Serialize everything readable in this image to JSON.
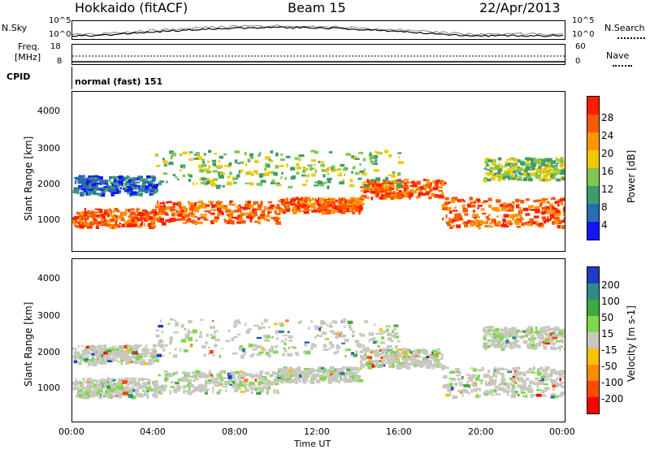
{
  "header": {
    "station": "Hokkaido (fitACF)",
    "beam": "Beam 15",
    "date": "22/Apr/2013"
  },
  "noise_panel": {
    "left_label": "N.Sky",
    "left_top_tick": "10^5",
    "left_bottom_tick": "10^0",
    "right_label": "N.Search",
    "right_top_tick": "10^5",
    "right_bottom_tick": "10^0"
  },
  "freq_panel": {
    "left_label_1": "Freq.",
    "left_label_2": "[MHz]",
    "left_top_tick": "18",
    "left_bottom_tick": "8",
    "right_label": "Nave",
    "right_top_tick": "60",
    "right_bottom_tick": "0"
  },
  "cpid_panel": {
    "label": "CPID",
    "mode": "normal (fast) 151"
  },
  "x_axis": {
    "label": "Time UT",
    "ticks": [
      "00:00",
      "04:00",
      "08:00",
      "12:00",
      "16:00",
      "20:00",
      "00:00"
    ]
  },
  "chart_data": [
    {
      "type": "heatmap",
      "name": "power",
      "ylabel": "Slant Range [km]",
      "y_ticks": [
        "1000",
        "2000",
        "3000",
        "4000"
      ],
      "ylim": [
        200,
        4600
      ],
      "xlim_hours": [
        0,
        24
      ],
      "colorbar": {
        "label": "Power [dB]",
        "ticks": [
          "28",
          "24",
          "20",
          "16",
          "12",
          "8",
          "4"
        ],
        "colors": [
          "#ff1e00",
          "#ff5a00",
          "#ff9600",
          "#f0c800",
          "#7fc850",
          "#3c9e6a",
          "#2a6cb0",
          "#1414ff"
        ]
      },
      "bands": [
        {
          "hours": [
            0,
            4
          ],
          "range": [
            900,
            1400
          ],
          "level": "high"
        },
        {
          "hours": [
            4,
            10
          ],
          "range": [
            1000,
            1600
          ],
          "level": "high"
        },
        {
          "hours": [
            10,
            14
          ],
          "range": [
            1300,
            1700
          ],
          "level": "high"
        },
        {
          "hours": [
            14,
            18
          ],
          "range": [
            1700,
            2200
          ],
          "level": "high"
        },
        {
          "hours": [
            18,
            24
          ],
          "range": [
            900,
            1700
          ],
          "level": "high"
        },
        {
          "hours": [
            0,
            4
          ],
          "range": [
            1800,
            2300
          ],
          "level": "low"
        },
        {
          "hours": [
            4,
            16
          ],
          "range": [
            2000,
            3000
          ],
          "level": "mid"
        },
        {
          "hours": [
            20,
            24
          ],
          "range": [
            2200,
            2800
          ],
          "level": "mid"
        }
      ]
    },
    {
      "type": "heatmap",
      "name": "velocity",
      "ylabel": "Slant Range [km]",
      "y_ticks": [
        "1000",
        "2000",
        "3000",
        "4000"
      ],
      "ylim": [
        200,
        4600
      ],
      "xlim_hours": [
        0,
        24
      ],
      "colorbar": {
        "label": "Velocity [m s-1]",
        "ticks": [
          "200",
          "100",
          "50",
          "15",
          "-15",
          "-50",
          "-100",
          "-200"
        ],
        "colors": [
          "#1e3cc8",
          "#2f8a8a",
          "#3caa3c",
          "#7fd84a",
          "#c8c8c0",
          "#ffc000",
          "#ff8c00",
          "#ff4a00",
          "#ff0000"
        ]
      }
    }
  ]
}
